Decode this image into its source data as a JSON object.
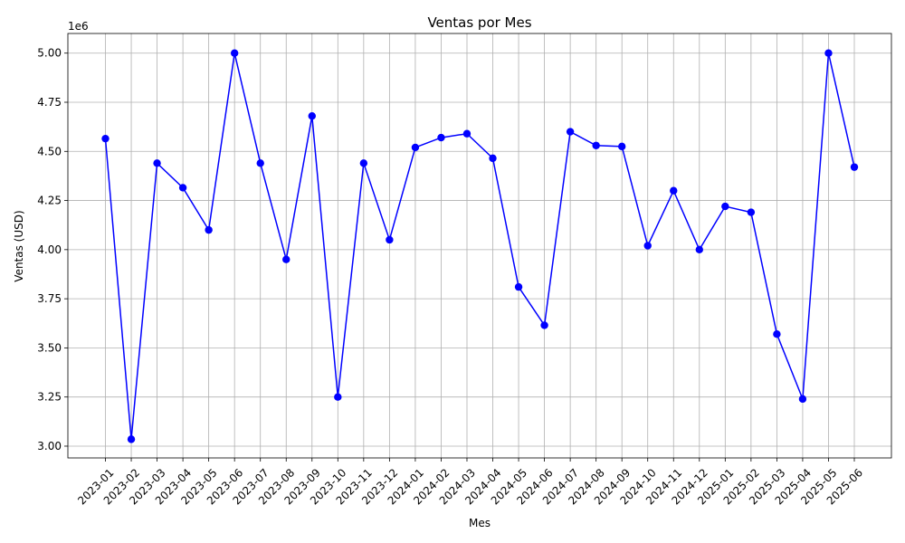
{
  "chart_data": {
    "type": "line",
    "title": "Ventas por Mes",
    "xlabel": "Mes",
    "ylabel": "Ventas (USD)",
    "offset_label": "1e6",
    "y_multiplier": 1000000,
    "ylim": [
      2.94,
      5.1
    ],
    "yticks": [
      "3.00",
      "3.25",
      "3.50",
      "3.75",
      "4.00",
      "4.25",
      "4.50",
      "4.75",
      "5.00"
    ],
    "grid": true,
    "line_color": "#0000ff",
    "categories": [
      "2023-01",
      "2023-02",
      "2023-03",
      "2023-04",
      "2023-05",
      "2023-06",
      "2023-07",
      "2023-08",
      "2023-09",
      "2023-10",
      "2023-11",
      "2023-12",
      "2024-01",
      "2024-02",
      "2024-03",
      "2024-04",
      "2024-05",
      "2024-06",
      "2024-07",
      "2024-08",
      "2024-09",
      "2024-10",
      "2024-11",
      "2024-12",
      "2025-01",
      "2025-02",
      "2025-03",
      "2025-04",
      "2025-05",
      "2025-06"
    ],
    "values": [
      4.565,
      3.035,
      4.44,
      4.315,
      4.1,
      5.0,
      4.44,
      3.95,
      4.68,
      3.25,
      4.44,
      4.05,
      4.52,
      4.57,
      4.59,
      4.465,
      3.81,
      3.615,
      4.6,
      4.53,
      4.525,
      4.02,
      4.3,
      4.0,
      4.22,
      4.19,
      3.57,
      3.24,
      5.0,
      4.42
    ]
  }
}
